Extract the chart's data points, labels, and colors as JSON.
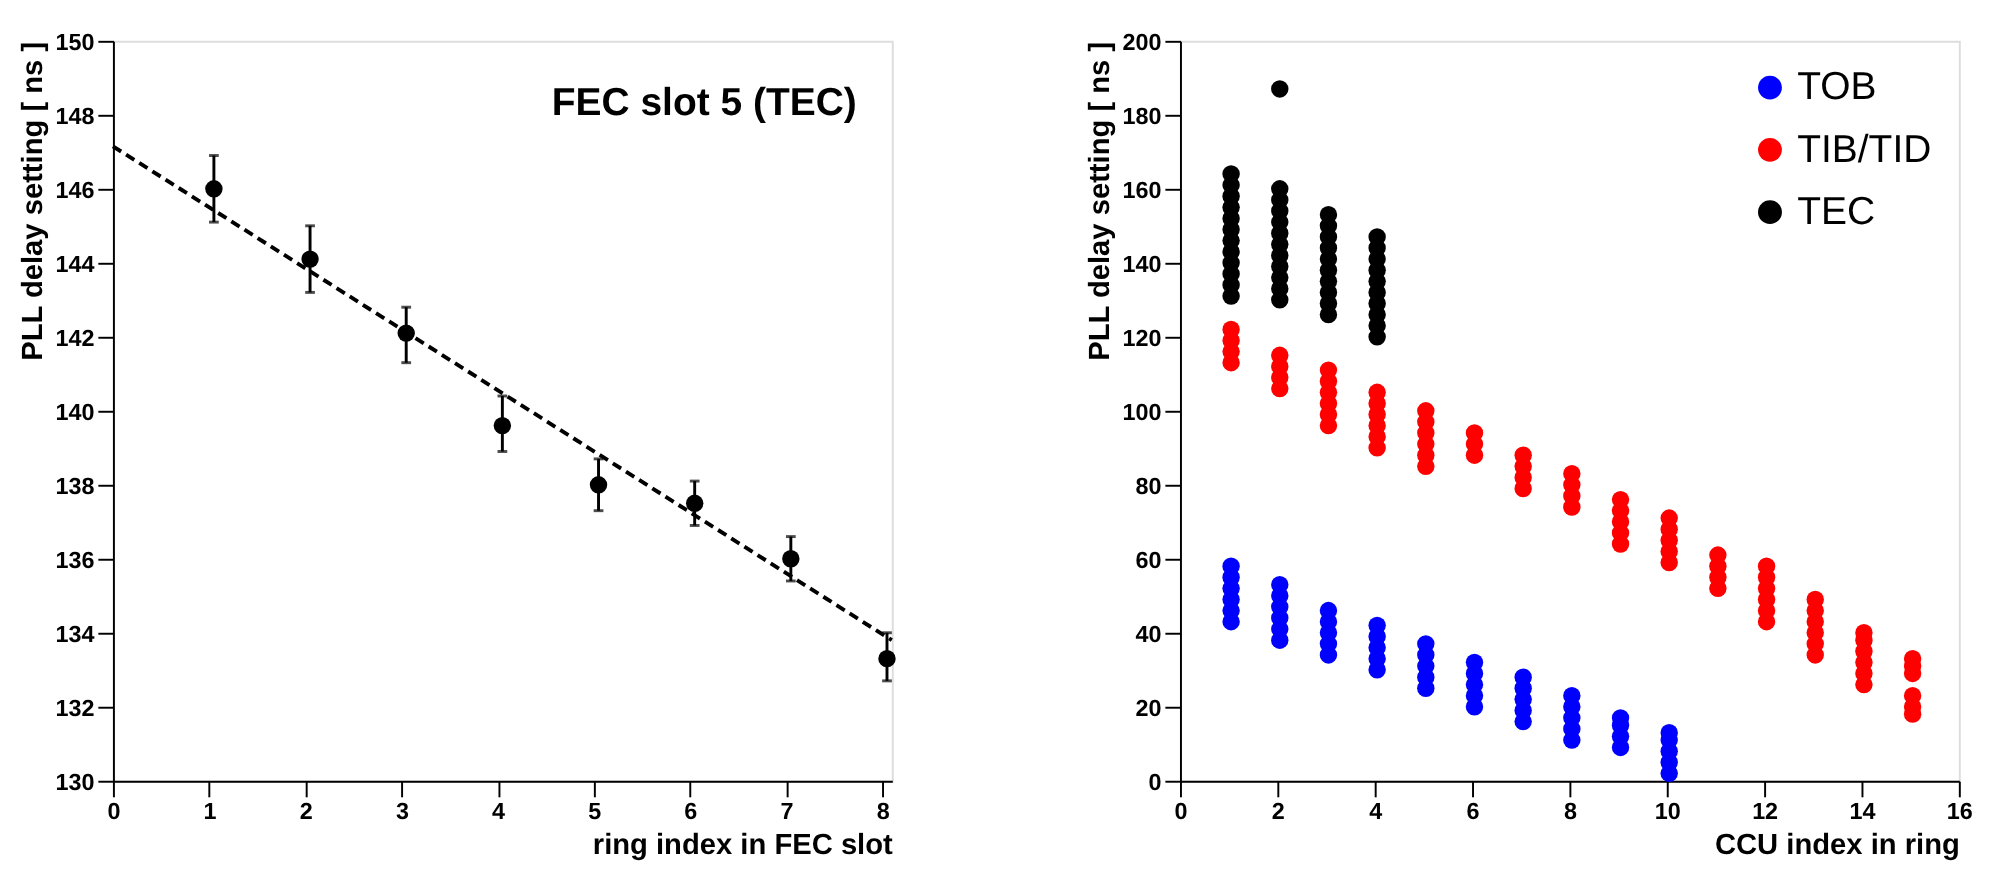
{
  "chart_data": [
    {
      "type": "scatter",
      "xlabel": "ring index in FEC slot",
      "ylabel": "PLL delay setting [ ns ]",
      "annotations": [
        "FEC slot 5 (TEC)"
      ],
      "xlim": [
        0,
        8.1
      ],
      "ylim": [
        130,
        150
      ],
      "xticks": [
        0,
        1,
        2,
        3,
        4,
        5,
        6,
        7,
        8
      ],
      "yticks": [
        130,
        132,
        134,
        136,
        138,
        140,
        142,
        144,
        146,
        148,
        150
      ],
      "grid": false,
      "legend": false,
      "series": [
        {
          "type": "scatter",
          "color": "#000000",
          "marker": "circle",
          "x": [
            1.05,
            2.05,
            3.05,
            4.05,
            5.05,
            6.05,
            7.05,
            8.05
          ],
          "values": [
            146.0,
            144.1,
            142.1,
            139.6,
            138.0,
            137.5,
            136.0,
            133.3
          ],
          "errors": [
            [
              145.1,
              146.9
            ],
            [
              143.2,
              145.0
            ],
            [
              141.3,
              142.8
            ],
            [
              138.9,
              140.4
            ],
            [
              137.3,
              138.7
            ],
            [
              136.9,
              138.1
            ],
            [
              135.4,
              136.6
            ],
            [
              132.7,
              134.0
            ]
          ]
        },
        {
          "type": "line",
          "color": "#000000",
          "line_style": "dashed",
          "x": [
            0,
            8.1
          ],
          "values": [
            147.15,
            133.8
          ]
        }
      ]
    },
    {
      "type": "scatter",
      "xlabel": "CCU index in ring",
      "ylabel": "PLL delay setting [ ns ]",
      "xlim": [
        0,
        16
      ],
      "ylim": [
        0,
        200
      ],
      "xticks": [
        0,
        2,
        4,
        6,
        8,
        10,
        12,
        14,
        16
      ],
      "yticks": [
        0,
        20,
        40,
        60,
        80,
        100,
        120,
        140,
        160,
        180,
        200
      ],
      "grid": false,
      "legend": "top right",
      "marker": "circle",
      "series": [
        {
          "name": "TOB",
          "color": "#0000ff",
          "x": [
            1.05,
            1.05,
            1.05,
            1.05,
            1.05,
            1.05,
            2.05,
            2.05,
            2.05,
            2.05,
            2.05,
            2.05,
            3.05,
            3.05,
            3.05,
            3.05,
            3.05,
            4.05,
            4.05,
            4.05,
            4.05,
            4.05,
            5.05,
            5.05,
            5.05,
            5.05,
            5.05,
            6.05,
            6.05,
            6.05,
            6.05,
            6.05,
            7.05,
            7.05,
            7.05,
            7.05,
            7.05,
            8.05,
            8.05,
            8.05,
            8.05,
            8.05,
            9.05,
            9.05,
            9.05,
            9.05,
            10.05,
            10.05,
            10.05,
            10.05,
            10.05
          ],
          "values": [
            43,
            46,
            49,
            52,
            55,
            58,
            38,
            41,
            44,
            47,
            50,
            53,
            34,
            37,
            40,
            43,
            46,
            30,
            33,
            36,
            39,
            42,
            25,
            28,
            31,
            34,
            37,
            20,
            23,
            26,
            29,
            32,
            16,
            19,
            22,
            25,
            28,
            11,
            14,
            17,
            20,
            23,
            9,
            12,
            15,
            17,
            2,
            5,
            8,
            11,
            13
          ]
        },
        {
          "name": "TIB/TID",
          "color": "#ff0000",
          "x": [
            1.05,
            1.05,
            1.05,
            1.05,
            2.05,
            2.05,
            2.05,
            2.05,
            3.05,
            3.05,
            3.05,
            3.05,
            3.05,
            3.05,
            4.05,
            4.05,
            4.05,
            4.05,
            4.05,
            4.05,
            5.05,
            5.05,
            5.05,
            5.05,
            5.05,
            5.05,
            6.05,
            6.05,
            6.05,
            7.05,
            7.05,
            7.05,
            7.05,
            8.05,
            8.05,
            8.05,
            8.05,
            9.05,
            9.05,
            9.05,
            9.05,
            9.05,
            10.05,
            10.05,
            10.05,
            10.05,
            10.05,
            11.05,
            11.05,
            11.05,
            11.05,
            12.05,
            12.05,
            12.05,
            12.05,
            12.05,
            12.05,
            13.05,
            13.05,
            13.05,
            13.05,
            13.05,
            13.05,
            14.05,
            14.05,
            14.05,
            14.05,
            14.05,
            14.05,
            15.05,
            15.05,
            15.05,
            15.05,
            15.05,
            15.05
          ],
          "values": [
            113,
            116,
            119,
            122,
            106,
            109,
            112,
            115,
            96,
            99,
            102,
            105,
            108,
            111,
            90,
            93,
            96,
            99,
            102,
            105,
            85,
            88,
            91,
            94,
            97,
            100,
            88,
            91,
            94,
            79,
            82,
            85,
            88,
            74,
            77,
            80,
            83,
            64,
            67,
            70,
            73,
            76,
            59,
            62,
            65,
            68,
            71,
            52,
            55,
            58,
            61,
            43,
            46,
            49,
            52,
            55,
            58,
            34,
            37,
            40,
            43,
            46,
            49,
            26,
            29,
            32,
            35,
            38,
            40,
            29,
            31,
            33,
            18,
            20,
            23
          ]
        },
        {
          "name": "TEC",
          "color": "#000000",
          "x": [
            1.05,
            1.05,
            1.05,
            1.05,
            1.05,
            1.05,
            1.05,
            1.05,
            1.05,
            1.05,
            1.05,
            1.05,
            2.05,
            2.05,
            2.05,
            2.05,
            2.05,
            2.05,
            2.05,
            2.05,
            2.05,
            2.05,
            2.05,
            2.05,
            3.05,
            3.05,
            3.05,
            3.05,
            3.05,
            3.05,
            3.05,
            3.05,
            3.05,
            3.05,
            4.05,
            4.05,
            4.05,
            4.05,
            4.05,
            4.05,
            4.05,
            4.05,
            4.05,
            4.05
          ],
          "values": [
            131,
            134,
            137,
            140,
            143,
            146,
            149,
            152,
            155,
            158,
            161,
            164,
            130,
            133,
            136,
            139,
            142,
            145,
            148,
            151,
            154,
            157,
            160,
            187,
            126,
            129,
            132,
            135,
            138,
            141,
            144,
            147,
            150,
            153,
            120,
            123,
            126,
            129,
            132,
            135,
            138,
            141,
            144,
            147
          ]
        }
      ]
    }
  ]
}
